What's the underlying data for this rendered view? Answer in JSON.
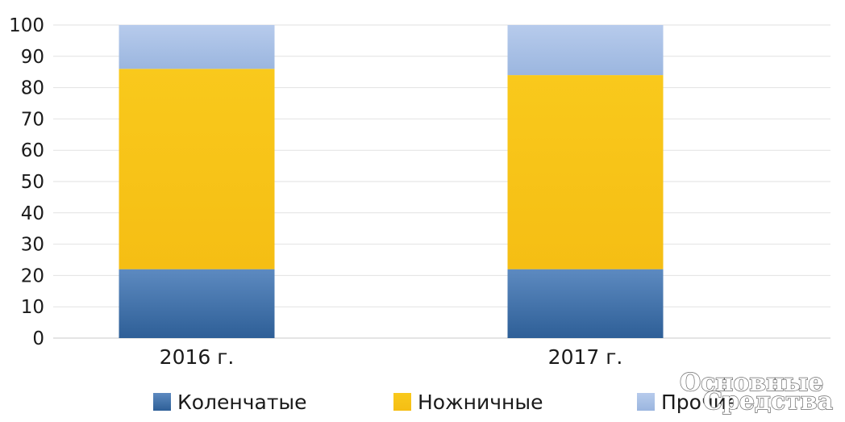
{
  "chart_data": {
    "type": "bar",
    "stacked": true,
    "categories": [
      "2016 г.",
      "2017 г."
    ],
    "series": [
      {
        "name": "Коленчатые",
        "values": [
          22,
          22
        ],
        "color": "#3a6ea5"
      },
      {
        "name": "Ножничные",
        "values": [
          64,
          62
        ],
        "color": "#f7c31a"
      },
      {
        "name": "Прочие",
        "values": [
          14,
          16
        ],
        "color": "#a9c0e4"
      }
    ],
    "ylim": [
      0,
      100
    ],
    "yticks": [
      0,
      10,
      20,
      30,
      40,
      50,
      60,
      70,
      80,
      90,
      100
    ],
    "grid": true,
    "legend_position": "bottom",
    "title": "",
    "xlabel": "",
    "ylabel": ""
  },
  "watermark": {
    "line1": "Основные",
    "line2": "Средства"
  }
}
